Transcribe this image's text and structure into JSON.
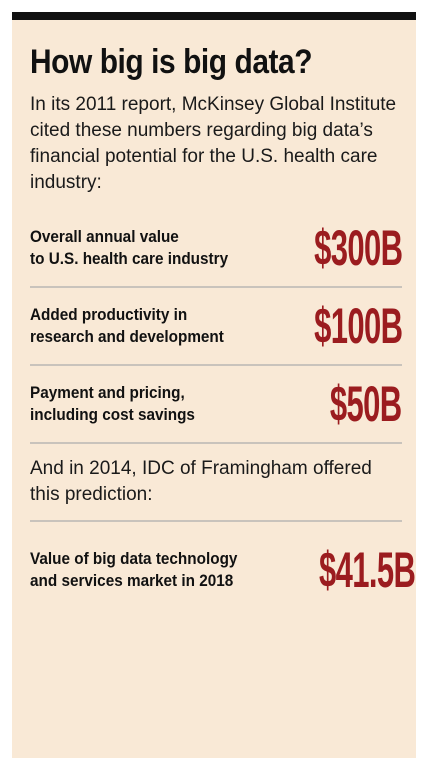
{
  "title": "How big is big data?",
  "intro": "In its 2011 report, McKinsey Global Institute cited these numbers regarding big data’s financial potential for the U.S. health care industry:",
  "mckinsey_items": [
    {
      "label_line1": "Overall annual value",
      "label_line2": "to U.S. health care industry",
      "value": "$300B"
    },
    {
      "label_line1": "Added productivity in",
      "label_line2": "research and development",
      "value": "$100B"
    },
    {
      "label_line1": "Payment and pricing,",
      "label_line2": "including cost savings",
      "value": "$50B"
    }
  ],
  "idc_text": "And in 2014, IDC of Framingham offered this prediction:",
  "idc_item": {
    "label_line1": "Value of big data technology",
    "label_line2": "and services market in 2018",
    "value": "$41.5B"
  },
  "colors": {
    "background": "#f9e9d6",
    "accent": "#9b1c1f",
    "top_bar": "#111111",
    "divider": "#c9c3bc"
  }
}
